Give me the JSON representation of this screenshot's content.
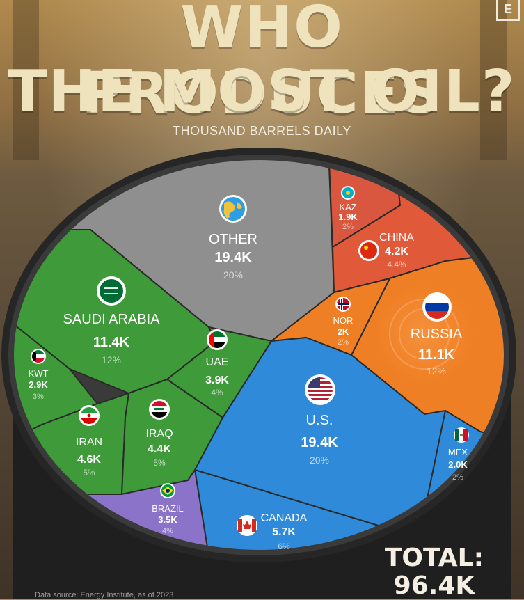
{
  "header": {
    "title_line1": "WHO PRODUCES",
    "title_line2": "THE MOST OIL?",
    "subtitle": "THOUSAND BARRELS DAILY",
    "brand_letter": "E"
  },
  "colors": {
    "other": "#8f8f8f",
    "kaz": "#d9573f",
    "china": "#e05a3a",
    "russia": "#ef7f24",
    "nor": "#ef7f24",
    "us": "#2f8bd9",
    "mex": "#2f8bd9",
    "canada": "#2f8bd9",
    "middle_east": "#3f9b3a",
    "brazil": "#8a73c8"
  },
  "segments": [
    {
      "key": "other",
      "name": "OTHER",
      "value": "19.4K",
      "pct": "20%",
      "icon": "globe-icon"
    },
    {
      "key": "kaz",
      "name": "KAZ",
      "value": "1.9K",
      "pct": "2%",
      "icon": "kazakhstan-flag-icon"
    },
    {
      "key": "china",
      "name": "CHINA",
      "value": "4.2K",
      "pct": "4.4%",
      "icon": "china-flag-icon"
    },
    {
      "key": "russia",
      "name": "RUSSIA",
      "value": "11.1K",
      "pct": "12%",
      "icon": "russia-flag-icon"
    },
    {
      "key": "nor",
      "name": "NOR",
      "value": "2K",
      "pct": "2%",
      "icon": "norway-flag-icon"
    },
    {
      "key": "us",
      "name": "U.S.",
      "value": "19.4K",
      "pct": "20%",
      "icon": "usa-flag-icon"
    },
    {
      "key": "mex",
      "name": "MEX",
      "value": "2.0K",
      "pct": "2%",
      "icon": "mexico-flag-icon"
    },
    {
      "key": "canada",
      "name": "CANADA",
      "value": "5.7K",
      "pct": "6%",
      "icon": "canada-flag-icon"
    },
    {
      "key": "brazil",
      "name": "BRAZIL",
      "value": "3.5K",
      "pct": "4%",
      "icon": "brazil-flag-icon"
    },
    {
      "key": "saudi",
      "name": "SAUDI ARABIA",
      "value": "11.4K",
      "pct": "12%",
      "icon": "saudi-flag-icon"
    },
    {
      "key": "uae",
      "name": "UAE",
      "value": "3.9K",
      "pct": "4%",
      "icon": "uae-flag-icon"
    },
    {
      "key": "kwt",
      "name": "KWT",
      "value": "2.9K",
      "pct": "3%",
      "icon": "kuwait-flag-icon"
    },
    {
      "key": "iran",
      "name": "IRAN",
      "value": "4.6K",
      "pct": "5%",
      "icon": "iran-flag-icon"
    },
    {
      "key": "iraq",
      "name": "IRAQ",
      "value": "4.4K",
      "pct": "5%",
      "icon": "iraq-flag-icon"
    }
  ],
  "total": {
    "line1": "TOTAL:",
    "line2": "96.4K"
  },
  "source": "Data source: Energy Institute, as of 2023"
}
